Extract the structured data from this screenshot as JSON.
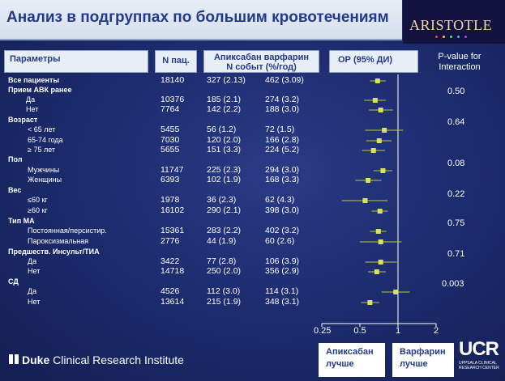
{
  "title": "Анализ в подгруппах по большим кровотечениям",
  "logo": "ARISTOTLE",
  "headers": {
    "params": "Параметры",
    "n": "N пац.",
    "events_line1": "Апиксабан варфарин",
    "events_line2": "N событ (%/год)",
    "or": "ОР (95% ДИ)",
    "pval_line1": "P-value for",
    "pval_line2": "Interaction"
  },
  "rows": [
    {
      "label": "Все пациенты",
      "n": "18140",
      "apix": "327 (2.13)",
      "warf": "462 (3.09)"
    },
    {
      "label": "Прием АВК ранее"
    },
    {
      "label": "Да",
      "n": "10376",
      "apix": "185 (2.1)",
      "warf": "274 (3.2)"
    },
    {
      "label": "Нет",
      "n": "7764",
      "apix": "142 (2.2)",
      "warf": "188 (3.0)"
    },
    {
      "label": "Возраст"
    },
    {
      "label": "< 65 лет",
      "n": "5455",
      "apix": "56 (1.2)",
      "warf": "72 (1.5)"
    },
    {
      "label": "65-74 года",
      "n": "7030",
      "apix": "120 (2.0)",
      "warf": "166 (2.8)"
    },
    {
      "label": "≥ 75 лет",
      "n": "5655",
      "apix": "151 (3.3)",
      "warf": "224 (5.2)"
    },
    {
      "label": "Пол"
    },
    {
      "label": "Мужчины",
      "n": "11747",
      "apix": "225 (2.3)",
      "warf": "294 (3.0)"
    },
    {
      "label": "Женщины",
      "n": "6393",
      "apix": "102 (1.9)",
      "warf": "168 (3.3)"
    },
    {
      "label": "Вес"
    },
    {
      "label": "≤60 кг",
      "n": "1978",
      "apix": "36 (2.3)",
      "warf": "62 (4.3)"
    },
    {
      "label": "≥60 кг",
      "n": "16102",
      "apix": "290 (2.1)",
      "warf": "398 (3.0)"
    },
    {
      "label": "Тип МА"
    },
    {
      "label": "Постоянная/персистир.",
      "n": "15361",
      "apix": "283 (2.2)",
      "warf": "402 (3.2)"
    },
    {
      "label": "Пароксизмальная",
      "n": "2776",
      "apix": "44 (1.9)",
      "warf": "60 (2.6)"
    },
    {
      "label": "Предшеств. Инсульт/ТИА"
    },
    {
      "label": "Да",
      "n": "3422",
      "apix": "77 (2.8)",
      "warf": "106 (3.9)"
    },
    {
      "label": "Нет",
      "n": "14718",
      "apix": "250 (2.0)",
      "warf": "356 (2.9)"
    },
    {
      "label": "СД"
    },
    {
      "label": "Да",
      "n": "4526",
      "apix": "112 (3.0)",
      "warf": "114 (3.1)"
    },
    {
      "label": "Нет",
      "n": "13614",
      "apix": "215 (1.9)",
      "warf": "348 (3.1)"
    }
  ],
  "pvalues": [
    "0.50",
    "0.64",
    "0.08",
    "0.22",
    "0.75",
    "0.71",
    "0.003"
  ],
  "chart_data": {
    "type": "forest",
    "xscale": "log",
    "xlim": [
      0.25,
      2
    ],
    "ticks": [
      "0.25",
      "0.5",
      "1",
      "2"
    ],
    "tick_values": [
      0.25,
      0.5,
      1,
      2
    ],
    "reference": 1,
    "points": [
      {
        "or": 0.69,
        "lo": 0.6,
        "hi": 0.8
      },
      {
        "or": 0.66,
        "lo": 0.54,
        "hi": 0.8
      },
      {
        "or": 0.73,
        "lo": 0.59,
        "hi": 0.91
      },
      {
        "or": 0.78,
        "lo": 0.55,
        "hi": 1.1
      },
      {
        "or": 0.71,
        "lo": 0.56,
        "hi": 0.89
      },
      {
        "or": 0.64,
        "lo": 0.52,
        "hi": 0.79
      },
      {
        "or": 0.76,
        "lo": 0.64,
        "hi": 0.9
      },
      {
        "or": 0.58,
        "lo": 0.46,
        "hi": 0.74
      },
      {
        "or": 0.55,
        "lo": 0.36,
        "hi": 0.83
      },
      {
        "or": 0.72,
        "lo": 0.62,
        "hi": 0.83
      },
      {
        "or": 0.7,
        "lo": 0.6,
        "hi": 0.81
      },
      {
        "or": 0.73,
        "lo": 0.5,
        "hi": 1.07
      },
      {
        "or": 0.73,
        "lo": 0.55,
        "hi": 0.98
      },
      {
        "or": 0.68,
        "lo": 0.58,
        "hi": 0.8
      },
      {
        "or": 0.96,
        "lo": 0.74,
        "hi": 1.24
      },
      {
        "or": 0.6,
        "lo": 0.51,
        "hi": 0.71
      }
    ]
  },
  "favors": {
    "left_line1": "Апиксабан",
    "left_line2": "лучше",
    "right_line1": "Варфарин",
    "right_line2": "лучше"
  },
  "footer": {
    "duke_brand": "Duke",
    "duke_rest": " Clinical Research Institute",
    "ucr": "UCR",
    "ucr_small1": "UPPSALA CLINICAL",
    "ucr_small2": "RESEARCH CENTER"
  },
  "colors": {
    "background": "#1b2a6b",
    "marker": "#d7e35a",
    "ci_line": "#b7c93a",
    "header_fill": "#e8eef6",
    "title_text": "#233a8a"
  }
}
